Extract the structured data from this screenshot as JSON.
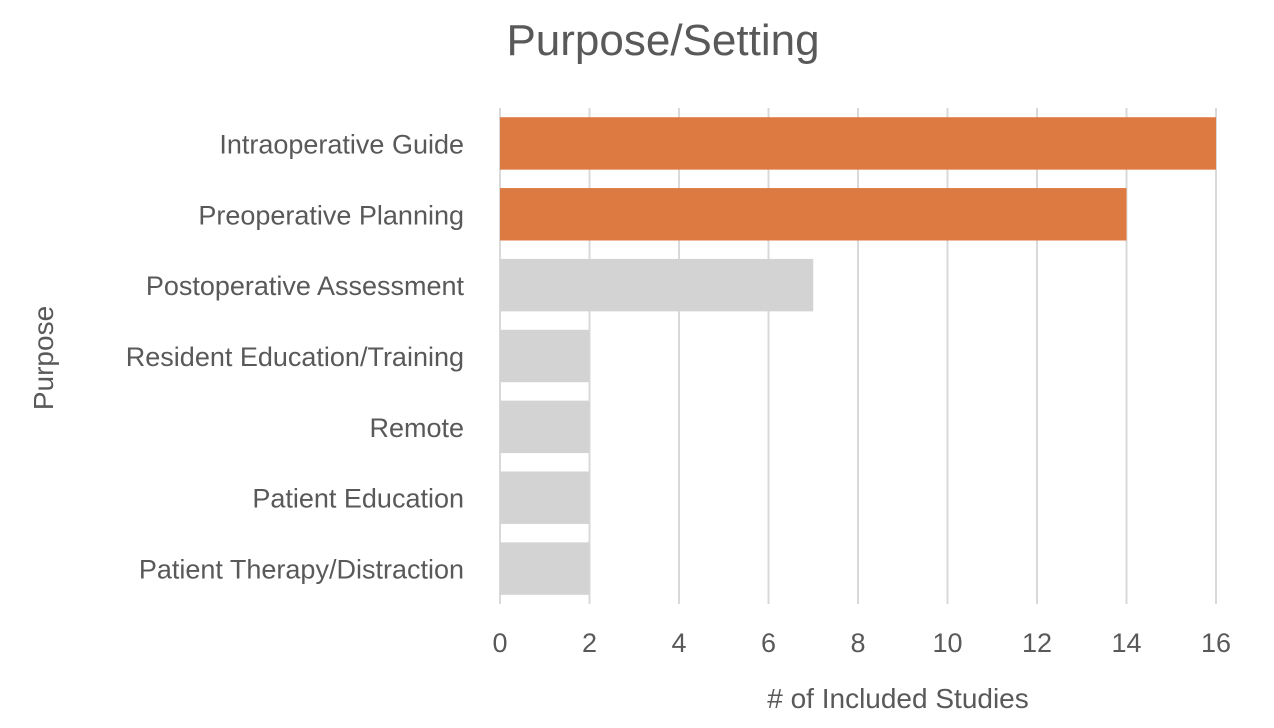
{
  "chart_data": {
    "type": "bar",
    "orientation": "horizontal",
    "title": "Purpose/Setting",
    "xlabel": "# of Included Studies",
    "ylabel": "Purpose",
    "categories": [
      "Intraoperative Guide",
      "Preoperative Planning",
      "Postoperative Assessment",
      "Resident Education/Training",
      "Remote",
      "Patient Education",
      "Patient Therapy/Distraction"
    ],
    "values": [
      16,
      14,
      7,
      2,
      2,
      2,
      2
    ],
    "xlim": [
      0,
      16
    ],
    "xticks": [
      0,
      2,
      4,
      6,
      8,
      10,
      12,
      14,
      16
    ],
    "grid": "vertical",
    "legend": "none",
    "colors": {
      "highlight": "#dd7a42",
      "default": "#d3d3d3"
    },
    "highlighted_categories": [
      "Intraoperative Guide",
      "Preoperative Planning"
    ]
  }
}
